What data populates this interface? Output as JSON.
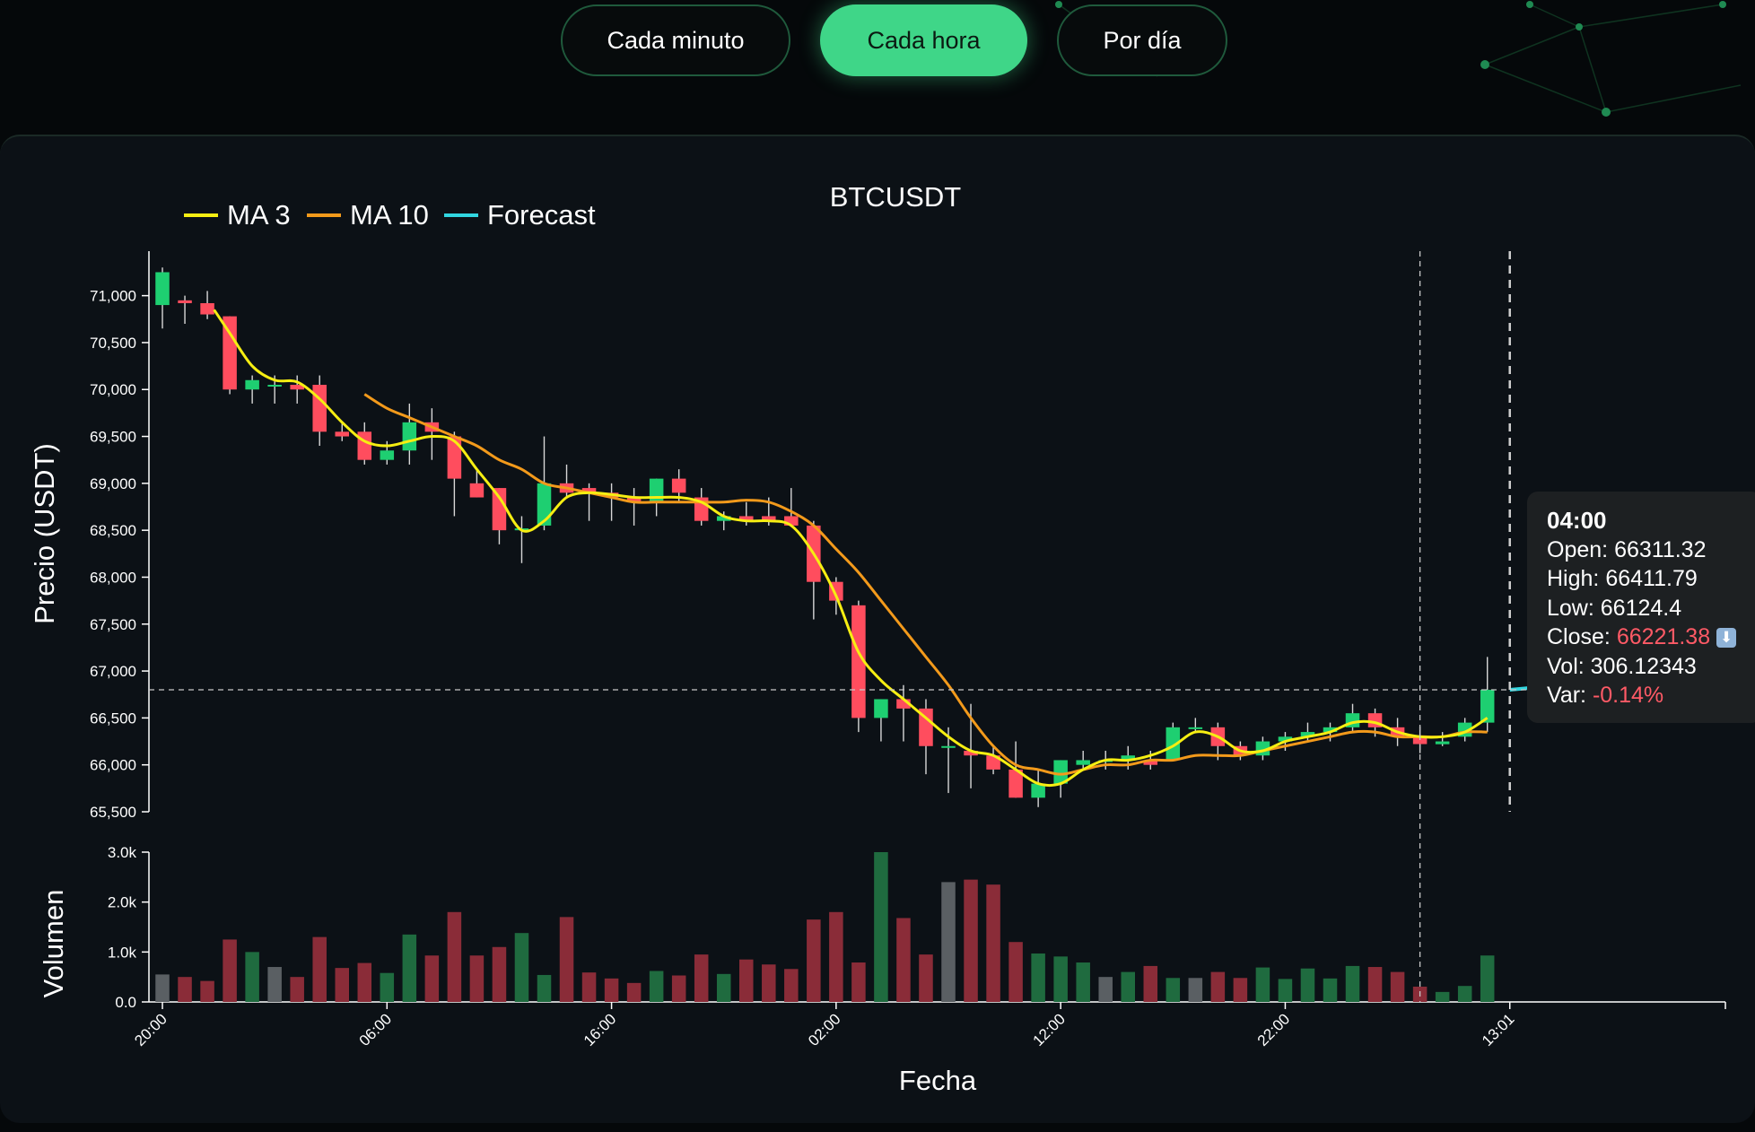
{
  "tabs": [
    {
      "label": "Cada minuto",
      "active": false
    },
    {
      "label": "Cada hora",
      "active": true
    },
    {
      "label": "Por día",
      "active": false
    }
  ],
  "colors": {
    "up": "#1ecf71",
    "down": "#ff4d5e",
    "volume_up": "#1f6b3f",
    "volume_down": "#8a2c38",
    "volume_neutral": "#5a5f63",
    "ma3": "#f6ee12",
    "ma10": "#f39a1b",
    "forecast": "#31d6e0",
    "accent": "#3fd688",
    "text": "#ffffff"
  },
  "tooltip": {
    "time": "04:00",
    "open_label": "Open:",
    "open": "66311.32",
    "high_label": "High:",
    "high": "66411.79",
    "low_label": "Low:",
    "low": "66124.4",
    "close_label": "Close:",
    "close": "66221.38",
    "vol_label": "Vol:",
    "vol": "306.12343",
    "var_label": "Var:",
    "var": "-0.14%"
  },
  "chart_data": {
    "type": "candlestick",
    "title": "BTCUSDT",
    "xlabel": "Fecha",
    "ylabel": "Precio (USDT)",
    "volume_ylabel": "Volumen",
    "legend": {
      "placement": "top-left",
      "items": [
        {
          "name": "MA 3",
          "color_key": "ma3"
        },
        {
          "name": "MA 10",
          "color_key": "ma10"
        },
        {
          "name": "Forecast",
          "color_key": "forecast"
        }
      ]
    },
    "ylim": [
      65500,
      71350
    ],
    "yticks": [
      65500,
      66000,
      66500,
      67000,
      67500,
      68000,
      68500,
      69000,
      69500,
      70000,
      70500,
      71000
    ],
    "ytick_labels": [
      "65,500",
      "66,000",
      "66,500",
      "67,000",
      "67,500",
      "68,000",
      "68,500",
      "69,000",
      "69,500",
      "70,000",
      "70,500",
      "71,000"
    ],
    "volume_ylim": [
      0,
      3000
    ],
    "volume_ticks": [
      0,
      1000,
      2000,
      3000
    ],
    "volume_tick_labels": [
      "0.0",
      "1.0k",
      "2.0k",
      "3.0k"
    ],
    "xlim": [
      -0.6,
      69.6
    ],
    "xticks": [
      0,
      10,
      20,
      30,
      40,
      50,
      60
    ],
    "xtick_labels": [
      "20:00",
      "06:00",
      "16:00",
      "02:00",
      "12:00",
      "22:00",
      "13:01"
    ],
    "hover_index": 56,
    "crosshair_price": 66800,
    "forecast_index": 60,
    "forecast_value": 66800,
    "candles": [
      {
        "o": 70900,
        "h": 71300,
        "l": 70650,
        "c": 71250,
        "v": 550
      },
      {
        "o": 70950,
        "h": 71000,
        "l": 70700,
        "c": 70920,
        "v": 500
      },
      {
        "o": 70920,
        "h": 71050,
        "l": 70750,
        "c": 70800,
        "v": 420
      },
      {
        "o": 70780,
        "h": 70780,
        "l": 69950,
        "c": 70000,
        "v": 1250
      },
      {
        "o": 70000,
        "h": 70150,
        "l": 69850,
        "c": 70100,
        "v": 1000
      },
      {
        "o": 70050,
        "h": 70150,
        "l": 69850,
        "c": 70050,
        "v": 700
      },
      {
        "o": 70050,
        "h": 70150,
        "l": 69850,
        "c": 70000,
        "v": 500
      },
      {
        "o": 70050,
        "h": 70150,
        "l": 69400,
        "c": 69550,
        "v": 1300
      },
      {
        "o": 69550,
        "h": 69650,
        "l": 69450,
        "c": 69500,
        "v": 680
      },
      {
        "o": 69550,
        "h": 69650,
        "l": 69200,
        "c": 69250,
        "v": 780
      },
      {
        "o": 69250,
        "h": 69450,
        "l": 69200,
        "c": 69350,
        "v": 580
      },
      {
        "o": 69350,
        "h": 69850,
        "l": 69200,
        "c": 69650,
        "v": 1350
      },
      {
        "o": 69650,
        "h": 69800,
        "l": 69250,
        "c": 69550,
        "v": 930
      },
      {
        "o": 69500,
        "h": 69550,
        "l": 68650,
        "c": 69050,
        "v": 1800
      },
      {
        "o": 69000,
        "h": 69150,
        "l": 68850,
        "c": 68850,
        "v": 930
      },
      {
        "o": 68950,
        "h": 68950,
        "l": 68350,
        "c": 68500,
        "v": 1100
      },
      {
        "o": 68500,
        "h": 68650,
        "l": 68150,
        "c": 68520,
        "v": 1380
      },
      {
        "o": 68550,
        "h": 69500,
        "l": 68500,
        "c": 69000,
        "v": 540
      },
      {
        "o": 69000,
        "h": 69200,
        "l": 68850,
        "c": 68900,
        "v": 1700
      },
      {
        "o": 68950,
        "h": 69000,
        "l": 68600,
        "c": 68900,
        "v": 590
      },
      {
        "o": 68900,
        "h": 69000,
        "l": 68600,
        "c": 68850,
        "v": 470
      },
      {
        "o": 68850,
        "h": 68950,
        "l": 68550,
        "c": 68800,
        "v": 380
      },
      {
        "o": 68800,
        "h": 69050,
        "l": 68650,
        "c": 69050,
        "v": 620
      },
      {
        "o": 69050,
        "h": 69150,
        "l": 68800,
        "c": 68900,
        "v": 530
      },
      {
        "o": 68850,
        "h": 68950,
        "l": 68550,
        "c": 68600,
        "v": 950
      },
      {
        "o": 68600,
        "h": 68700,
        "l": 68500,
        "c": 68650,
        "v": 560
      },
      {
        "o": 68650,
        "h": 68800,
        "l": 68550,
        "c": 68600,
        "v": 850
      },
      {
        "o": 68650,
        "h": 68850,
        "l": 68550,
        "c": 68600,
        "v": 750
      },
      {
        "o": 68650,
        "h": 68950,
        "l": 68550,
        "c": 68550,
        "v": 660
      },
      {
        "o": 68550,
        "h": 68600,
        "l": 67550,
        "c": 67950,
        "v": 1650
      },
      {
        "o": 67950,
        "h": 68000,
        "l": 67600,
        "c": 67750,
        "v": 1800
      },
      {
        "o": 67700,
        "h": 67750,
        "l": 66350,
        "c": 66500,
        "v": 790
      },
      {
        "o": 66500,
        "h": 66700,
        "l": 66250,
        "c": 66700,
        "v": 3000
      },
      {
        "o": 66700,
        "h": 66850,
        "l": 66250,
        "c": 66600,
        "v": 1680
      },
      {
        "o": 66600,
        "h": 66700,
        "l": 65900,
        "c": 66200,
        "v": 950
      },
      {
        "o": 66200,
        "h": 66400,
        "l": 65700,
        "c": 66200,
        "v": 2400
      },
      {
        "o": 66150,
        "h": 66650,
        "l": 65750,
        "c": 66100,
        "v": 2450
      },
      {
        "o": 66100,
        "h": 66200,
        "l": 65900,
        "c": 65950,
        "v": 2350
      },
      {
        "o": 65950,
        "h": 66250,
        "l": 65650,
        "c": 65650,
        "v": 1200
      },
      {
        "o": 65650,
        "h": 65950,
        "l": 65550,
        "c": 65800,
        "v": 970
      },
      {
        "o": 65800,
        "h": 66050,
        "l": 65650,
        "c": 66050,
        "v": 910
      },
      {
        "o": 66000,
        "h": 66150,
        "l": 65950,
        "c": 66050,
        "v": 790
      },
      {
        "o": 66050,
        "h": 66150,
        "l": 65950,
        "c": 66050,
        "v": 500
      },
      {
        "o": 66050,
        "h": 66200,
        "l": 65950,
        "c": 66100,
        "v": 600
      },
      {
        "o": 66050,
        "h": 66150,
        "l": 65950,
        "c": 66000,
        "v": 720
      },
      {
        "o": 66050,
        "h": 66450,
        "l": 66050,
        "c": 66400,
        "v": 480
      },
      {
        "o": 66400,
        "h": 66500,
        "l": 66350,
        "c": 66400,
        "v": 480
      },
      {
        "o": 66400,
        "h": 66450,
        "l": 66050,
        "c": 66200,
        "v": 600
      },
      {
        "o": 66200,
        "h": 66250,
        "l": 66050,
        "c": 66100,
        "v": 480
      },
      {
        "o": 66100,
        "h": 66300,
        "l": 66050,
        "c": 66250,
        "v": 690
      },
      {
        "o": 66250,
        "h": 66350,
        "l": 66150,
        "c": 66300,
        "v": 460
      },
      {
        "o": 66300,
        "h": 66450,
        "l": 66250,
        "c": 66350,
        "v": 670
      },
      {
        "o": 66350,
        "h": 66450,
        "l": 66250,
        "c": 66400,
        "v": 470
      },
      {
        "o": 66400,
        "h": 66650,
        "l": 66350,
        "c": 66550,
        "v": 720
      },
      {
        "o": 66550,
        "h": 66600,
        "l": 66300,
        "c": 66400,
        "v": 700
      },
      {
        "o": 66400,
        "h": 66500,
        "l": 66200,
        "c": 66300,
        "v": 600
      },
      {
        "o": 66311.32,
        "h": 66411.79,
        "l": 66124.4,
        "c": 66221.38,
        "v": 306.12343
      },
      {
        "o": 66220,
        "h": 66350,
        "l": 66200,
        "c": 66250,
        "v": 200
      },
      {
        "o": 66300,
        "h": 66500,
        "l": 66250,
        "c": 66450,
        "v": 320
      },
      {
        "o": 66450,
        "h": 67150,
        "l": 66350,
        "c": 66800,
        "v": 930
      }
    ],
    "ma3": [
      [
        2.3,
        70850
      ],
      [
        3,
        70600
      ],
      [
        4,
        70250
      ],
      [
        5,
        70100
      ],
      [
        6,
        70080
      ],
      [
        7,
        69900
      ],
      [
        8,
        69650
      ],
      [
        9,
        69450
      ],
      [
        10,
        69400
      ],
      [
        11,
        69450
      ],
      [
        12,
        69500
      ],
      [
        13,
        69450
      ],
      [
        14,
        69150
      ],
      [
        15,
        68850
      ],
      [
        16,
        68500
      ],
      [
        17,
        68600
      ],
      [
        18,
        68850
      ],
      [
        19,
        68900
      ],
      [
        20,
        68880
      ],
      [
        21,
        68850
      ],
      [
        22,
        68850
      ],
      [
        23,
        68850
      ],
      [
        24,
        68800
      ],
      [
        25,
        68650
      ],
      [
        26,
        68600
      ],
      [
        27,
        68600
      ],
      [
        28,
        68550
      ],
      [
        29,
        68250
      ],
      [
        30,
        67800
      ],
      [
        31,
        67200
      ],
      [
        32,
        66900
      ],
      [
        33,
        66700
      ],
      [
        34,
        66500
      ],
      [
        35,
        66300
      ],
      [
        36,
        66150
      ],
      [
        37,
        66100
      ],
      [
        38,
        65950
      ],
      [
        39,
        65800
      ],
      [
        40,
        65800
      ],
      [
        41,
        65950
      ],
      [
        42,
        66050
      ],
      [
        43,
        66050
      ],
      [
        44,
        66100
      ],
      [
        45,
        66200
      ],
      [
        46,
        66350
      ],
      [
        47,
        66300
      ],
      [
        48,
        66150
      ],
      [
        49,
        66150
      ],
      [
        50,
        66250
      ],
      [
        51,
        66300
      ],
      [
        52,
        66350
      ],
      [
        53,
        66450
      ],
      [
        54,
        66450
      ],
      [
        55,
        66350
      ],
      [
        56,
        66300
      ],
      [
        57,
        66300
      ],
      [
        58,
        66350
      ],
      [
        59,
        66500
      ]
    ],
    "ma10": [
      [
        9,
        69950
      ],
      [
        10,
        69800
      ],
      [
        11,
        69700
      ],
      [
        12,
        69600
      ],
      [
        13,
        69500
      ],
      [
        14,
        69400
      ],
      [
        15,
        69250
      ],
      [
        16,
        69150
      ],
      [
        17,
        69000
      ],
      [
        18,
        68950
      ],
      [
        19,
        68900
      ],
      [
        20,
        68850
      ],
      [
        21,
        68800
      ],
      [
        22,
        68800
      ],
      [
        23,
        68800
      ],
      [
        24,
        68800
      ],
      [
        25,
        68800
      ],
      [
        26,
        68820
      ],
      [
        27,
        68800
      ],
      [
        28,
        68700
      ],
      [
        29,
        68550
      ],
      [
        30,
        68300
      ],
      [
        31,
        68050
      ],
      [
        32,
        67750
      ],
      [
        33,
        67450
      ],
      [
        34,
        67150
      ],
      [
        35,
        66850
      ],
      [
        36,
        66500
      ],
      [
        37,
        66200
      ],
      [
        38,
        66000
      ],
      [
        39,
        65950
      ],
      [
        40,
        65900
      ],
      [
        41,
        65950
      ],
      [
        42,
        66000
      ],
      [
        43,
        66000
      ],
      [
        44,
        66050
      ],
      [
        45,
        66050
      ],
      [
        46,
        66100
      ],
      [
        47,
        66100
      ],
      [
        48,
        66100
      ],
      [
        49,
        66150
      ],
      [
        50,
        66200
      ],
      [
        51,
        66250
      ],
      [
        52,
        66300
      ],
      [
        53,
        66350
      ],
      [
        54,
        66350
      ],
      [
        55,
        66300
      ],
      [
        56,
        66300
      ],
      [
        57,
        66300
      ],
      [
        58,
        66350
      ],
      [
        59,
        66350
      ]
    ]
  }
}
